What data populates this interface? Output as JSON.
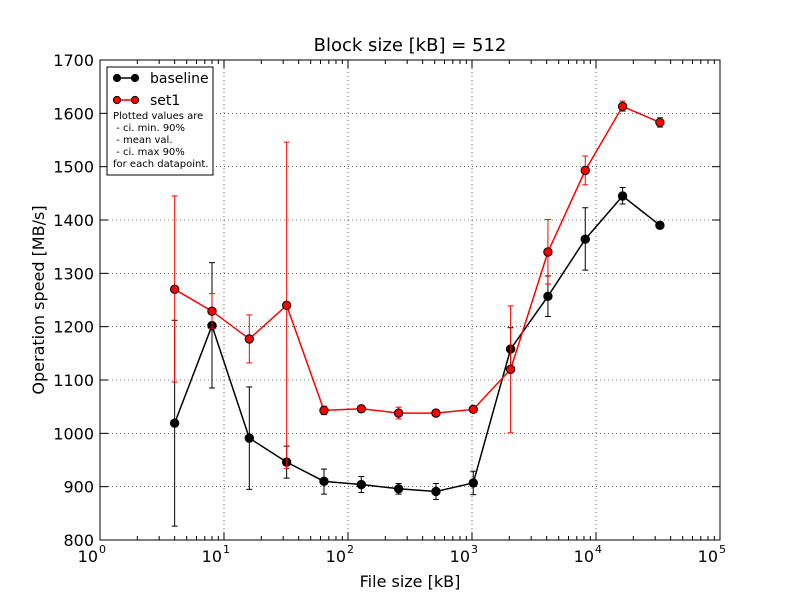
{
  "chart_data": {
    "type": "line",
    "title": "Block size [kB] = 512",
    "xlabel": "File size [kB]",
    "ylabel": "Operation speed [MB/s]",
    "x_scale": "log",
    "xlim": [
      1,
      100000
    ],
    "ylim": [
      800,
      1700
    ],
    "x_ticks": [
      {
        "base": "10",
        "exp": "0",
        "value": 1
      },
      {
        "base": "10",
        "exp": "1",
        "value": 10
      },
      {
        "base": "10",
        "exp": "2",
        "value": 100
      },
      {
        "base": "10",
        "exp": "3",
        "value": 1000
      },
      {
        "base": "10",
        "exp": "4",
        "value": 10000
      },
      {
        "base": "10",
        "exp": "5",
        "value": 100000
      }
    ],
    "y_ticks": [
      "800",
      "900",
      "1000",
      "1100",
      "1200",
      "1300",
      "1400",
      "1500",
      "1600",
      "1700"
    ],
    "grid": true,
    "legend_position": "top-left",
    "legend_note": [
      "Plotted values are",
      " - ci. min. 90%",
      " - mean val.",
      " - ci. max 90%",
      "for each datapoint."
    ],
    "x": [
      4,
      8,
      16,
      32,
      64,
      128,
      256,
      512,
      1024,
      2048,
      4096,
      8192,
      16384,
      32768
    ],
    "series": [
      {
        "name": "baseline",
        "color": "#000000",
        "values": [
          1019,
          1202,
          991,
          946,
          910,
          904,
          896,
          891,
          907,
          1158,
          1257,
          1364,
          1445,
          1390
        ],
        "ci_min": [
          826,
          1085,
          895,
          916,
          886,
          889,
          886,
          876,
          885,
          1118,
          1219,
          1306,
          1430,
          1384
        ],
        "ci_max": [
          1212,
          1320,
          1087,
          976,
          933,
          919,
          906,
          906,
          929,
          1198,
          1295,
          1423,
          1461,
          1396
        ]
      },
      {
        "name": "set1",
        "color": "#ff0000",
        "values": [
          1270,
          1229,
          1177,
          1240,
          1043,
          1046,
          1038,
          1038,
          1045,
          1120,
          1340,
          1493,
          1613,
          1583
        ],
        "ci_min": [
          1096,
          1197,
          1132,
          934,
          1035,
          1040,
          1027,
          1032,
          1040,
          1001,
          1280,
          1466,
          1604,
          1574
        ],
        "ci_max": [
          1445,
          1262,
          1222,
          1546,
          1051,
          1052,
          1049,
          1044,
          1050,
          1239,
          1401,
          1520,
          1623,
          1592
        ]
      }
    ]
  }
}
